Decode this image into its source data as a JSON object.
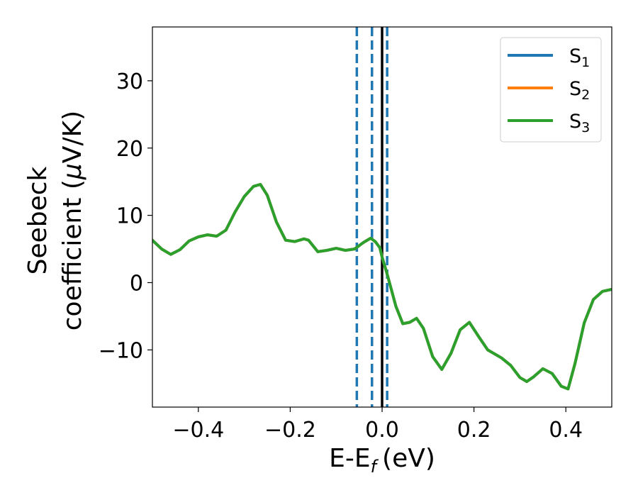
{
  "chart_data": {
    "type": "line",
    "xlabel": "E-E",
    "xlabel_sub": "f",
    "xlabel_unit": "(eV)",
    "ylabel_line1": "Seebeck",
    "ylabel_line2": "coefficient  (",
    "ylabel_mu": "μ",
    "ylabel_unit": "V/K)",
    "xlim": [
      -0.5,
      0.5
    ],
    "ylim": [
      -18.5,
      38
    ],
    "xticks": [
      -0.4,
      -0.2,
      0.0,
      0.2,
      0.4
    ],
    "xtick_labels": [
      "−0.4",
      "−0.2",
      "0.0",
      "0.2",
      "0.4"
    ],
    "yticks": [
      -10,
      0,
      10,
      20,
      30
    ],
    "ytick_labels": [
      "−10",
      "0",
      "10",
      "20",
      "30"
    ],
    "legend_position": "top-right",
    "grid": false,
    "series": [
      {
        "name": "S",
        "subscript": "1",
        "color": "#1f77b4",
        "x": [
          -0.5,
          -0.48,
          -0.46,
          -0.44,
          -0.42,
          -0.4,
          -0.38,
          -0.36,
          -0.34,
          -0.32,
          -0.3,
          -0.28,
          -0.265,
          -0.25,
          -0.23,
          -0.21,
          -0.19,
          -0.17,
          -0.16,
          -0.14,
          -0.12,
          -0.1,
          -0.08,
          -0.06,
          -0.04,
          -0.025,
          -0.015,
          -0.005,
          0.0,
          0.01,
          0.02,
          0.03,
          0.045,
          0.06,
          0.075,
          0.09,
          0.11,
          0.13,
          0.15,
          0.17,
          0.19,
          0.21,
          0.23,
          0.26,
          0.28,
          0.3,
          0.315,
          0.33,
          0.35,
          0.37,
          0.39,
          0.405,
          0.42,
          0.44,
          0.46,
          0.48,
          0.5
        ],
        "y": [
          6.3,
          5.0,
          4.2,
          4.9,
          6.2,
          6.8,
          7.1,
          6.9,
          7.8,
          10.5,
          12.8,
          14.3,
          14.6,
          13.0,
          9.0,
          6.3,
          6.1,
          6.5,
          6.3,
          4.6,
          4.8,
          5.1,
          4.8,
          5.0,
          6.0,
          6.6,
          6.1,
          5.2,
          3.8,
          1.5,
          -1.0,
          -3.5,
          -6.1,
          -5.9,
          -5.3,
          -6.8,
          -11.0,
          -12.9,
          -10.5,
          -7.0,
          -5.9,
          -8.0,
          -10.0,
          -11.2,
          -12.3,
          -14.1,
          -14.7,
          -14.0,
          -12.8,
          -13.5,
          -15.4,
          -15.8,
          -12.0,
          -6.0,
          -2.5,
          -1.3,
          -1.0
        ]
      },
      {
        "name": "S",
        "subscript": "2",
        "color": "#ff7f0e",
        "x": [
          -0.5,
          -0.48,
          -0.46,
          -0.44,
          -0.42,
          -0.4,
          -0.38,
          -0.36,
          -0.34,
          -0.32,
          -0.3,
          -0.28,
          -0.265,
          -0.25,
          -0.23,
          -0.21,
          -0.19,
          -0.17,
          -0.16,
          -0.14,
          -0.12,
          -0.1,
          -0.08,
          -0.06,
          -0.04,
          -0.025,
          -0.015,
          -0.005,
          0.0,
          0.01,
          0.02,
          0.03,
          0.045,
          0.06,
          0.075,
          0.09,
          0.11,
          0.13,
          0.15,
          0.17,
          0.19,
          0.21,
          0.23,
          0.26,
          0.28,
          0.3,
          0.315,
          0.33,
          0.35,
          0.37,
          0.39,
          0.405,
          0.42,
          0.44,
          0.46,
          0.48,
          0.5
        ],
        "y": [
          6.3,
          5.0,
          4.2,
          4.9,
          6.2,
          6.8,
          7.1,
          6.9,
          7.8,
          10.5,
          12.8,
          14.3,
          14.6,
          13.0,
          9.0,
          6.3,
          6.1,
          6.5,
          6.3,
          4.6,
          4.8,
          5.1,
          4.8,
          5.0,
          6.0,
          6.6,
          6.1,
          5.2,
          3.8,
          1.5,
          -1.0,
          -3.5,
          -6.1,
          -5.9,
          -5.3,
          -6.8,
          -11.0,
          -12.9,
          -10.5,
          -7.0,
          -5.9,
          -8.0,
          -10.0,
          -11.2,
          -12.3,
          -14.1,
          -14.7,
          -14.0,
          -12.8,
          -13.5,
          -15.4,
          -15.8,
          -12.0,
          -6.0,
          -2.5,
          -1.3,
          -1.0
        ]
      },
      {
        "name": "S",
        "subscript": "3",
        "color": "#2ca02c",
        "x": [
          -0.5,
          -0.48,
          -0.46,
          -0.44,
          -0.42,
          -0.4,
          -0.38,
          -0.36,
          -0.34,
          -0.32,
          -0.3,
          -0.28,
          -0.265,
          -0.25,
          -0.23,
          -0.21,
          -0.19,
          -0.17,
          -0.16,
          -0.14,
          -0.12,
          -0.1,
          -0.08,
          -0.06,
          -0.04,
          -0.025,
          -0.015,
          -0.005,
          0.0,
          0.01,
          0.02,
          0.03,
          0.045,
          0.06,
          0.075,
          0.09,
          0.11,
          0.13,
          0.15,
          0.17,
          0.19,
          0.21,
          0.23,
          0.26,
          0.28,
          0.3,
          0.315,
          0.33,
          0.35,
          0.37,
          0.39,
          0.405,
          0.42,
          0.44,
          0.46,
          0.48,
          0.5
        ],
        "y": [
          6.3,
          5.0,
          4.2,
          4.9,
          6.2,
          6.8,
          7.1,
          6.9,
          7.8,
          10.5,
          12.8,
          14.3,
          14.6,
          13.0,
          9.0,
          6.3,
          6.1,
          6.5,
          6.3,
          4.6,
          4.8,
          5.1,
          4.8,
          5.0,
          6.0,
          6.6,
          6.1,
          5.2,
          3.8,
          1.5,
          -1.0,
          -3.5,
          -6.1,
          -5.9,
          -5.3,
          -6.8,
          -11.0,
          -12.9,
          -10.5,
          -7.0,
          -5.9,
          -8.0,
          -10.0,
          -11.2,
          -12.3,
          -14.1,
          -14.7,
          -14.0,
          -12.8,
          -13.5,
          -15.4,
          -15.8,
          -12.0,
          -6.0,
          -2.5,
          -1.3,
          -1.0
        ]
      }
    ],
    "vlines": [
      {
        "x": -0.055,
        "style": "dashed",
        "color": "#1f77b4"
      },
      {
        "x": -0.022,
        "style": "dashed",
        "color": "#1f77b4"
      },
      {
        "x": 0.0,
        "style": "solid",
        "color": "#000000"
      },
      {
        "x": 0.011,
        "style": "dashed",
        "color": "#1f77b4"
      }
    ]
  }
}
